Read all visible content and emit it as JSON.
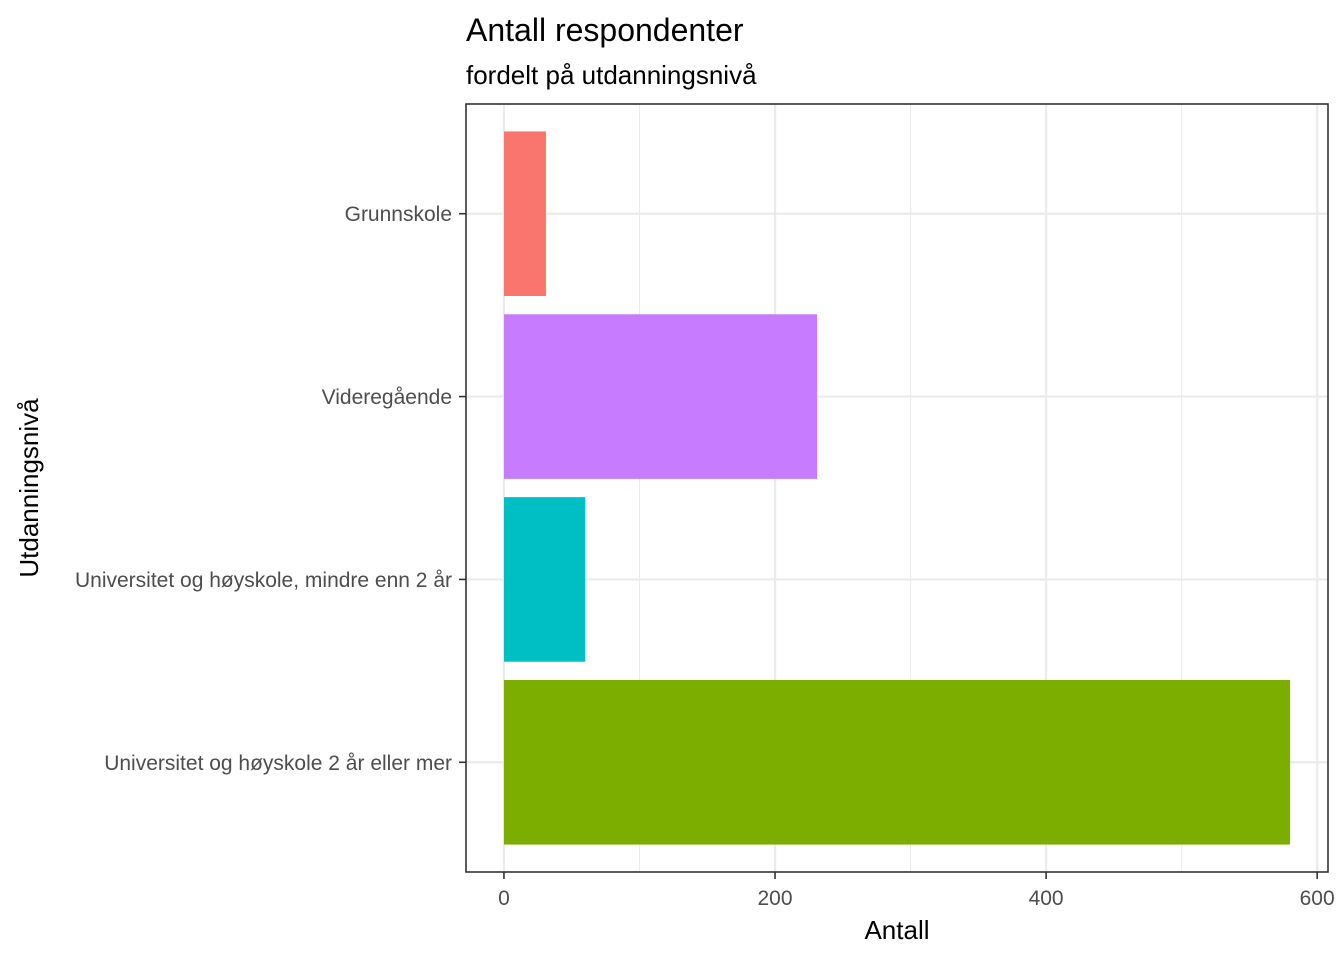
{
  "chart_data": {
    "type": "bar",
    "orientation": "horizontal",
    "title": "Antall respondenter",
    "subtitle": "fordelt på utdanningsnivå",
    "xlabel": "Antall",
    "ylabel": "Utdanningsnivå",
    "categories": [
      "Grunnskole",
      "Videregående",
      "Universitet og høyskole, mindre enn 2 år",
      "Universitet og høyskole 2 år eller mer"
    ],
    "values": [
      31,
      231,
      60,
      580
    ],
    "colors": [
      "#F8766D",
      "#C77CFF",
      "#00BFC4",
      "#7CAE00"
    ],
    "xlim": [
      -28,
      608
    ],
    "x_ticks": [
      0,
      200,
      400,
      600
    ],
    "x_tick_labels": [
      "0",
      "200",
      "400",
      "600"
    ],
    "grid": true,
    "legend": "none"
  }
}
